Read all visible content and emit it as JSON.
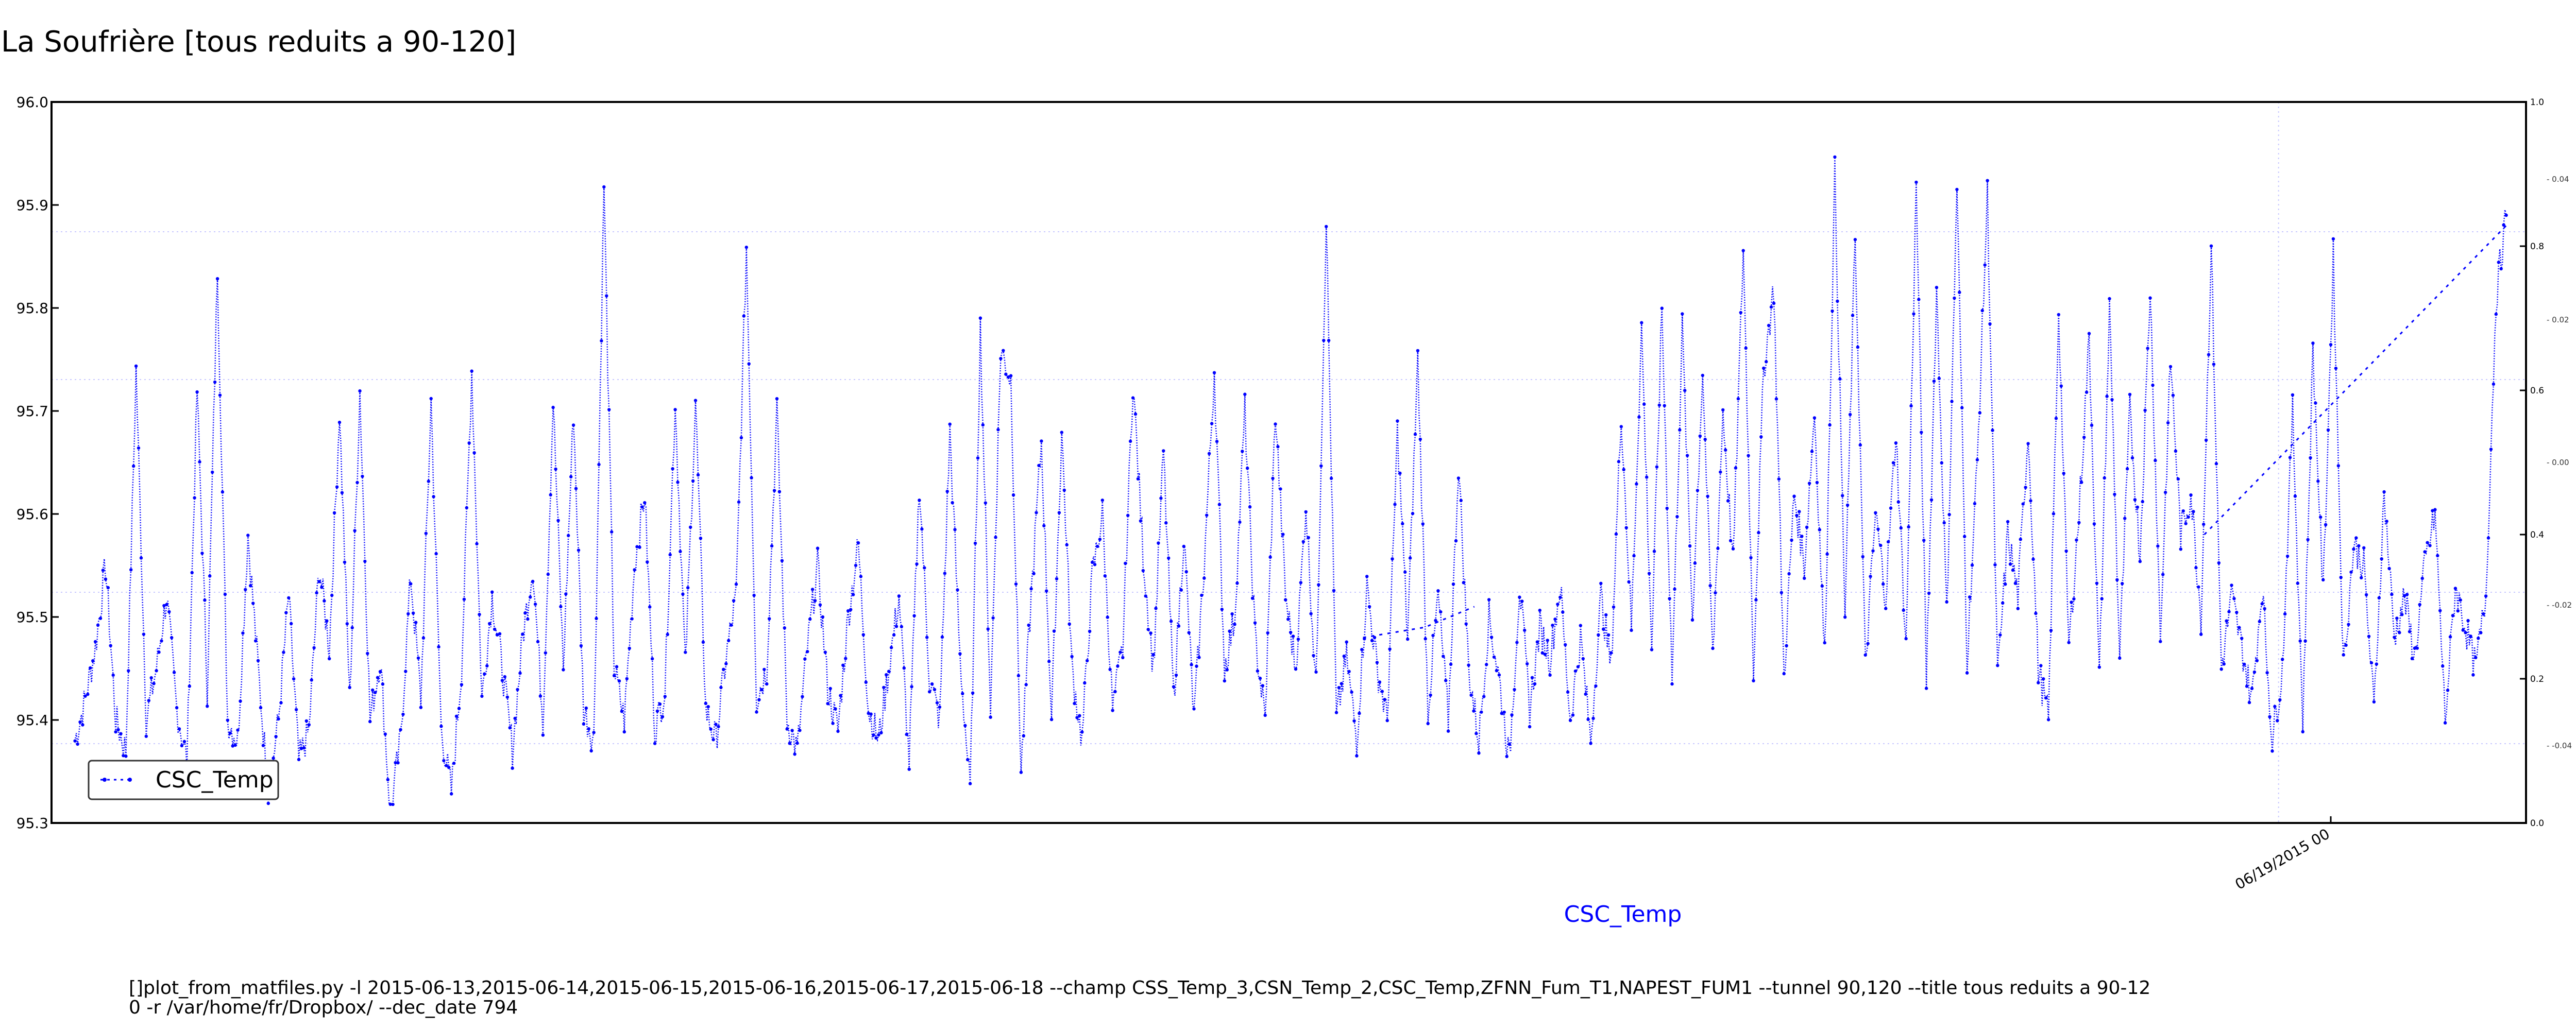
{
  "chart_data": {
    "type": "line",
    "title": "La Soufrière [tous reduits a 90-120]",
    "xlabel": "CSC_Temp",
    "ylabel": "",
    "ylim": [
      95.3,
      96.0
    ],
    "yticks": [
      "96.0",
      "95.9",
      "95.8",
      "95.7",
      "95.6",
      "95.5",
      "95.4",
      "95.3"
    ],
    "x_tick_labels": [
      "06/19/2015 00"
    ],
    "right_axis_1": {
      "ylim": [
        0.0,
        1.0
      ],
      "ticks": [
        "1.0",
        "0.8",
        "0.6",
        "0.4",
        "0.2",
        "0.0"
      ]
    },
    "right_axis_2": {
      "ticks": [
        "0.04",
        "0.02",
        "0.00",
        "-0.02",
        "-0.04"
      ]
    },
    "grid": true,
    "legend": {
      "position": "bottom-left",
      "entries": [
        "CSC_Temp"
      ]
    },
    "series": [
      {
        "name": "CSC_Temp",
        "color": "#0000ff",
        "style": "dotted-markers",
        "values": [
          95.38,
          95.42,
          95.47,
          95.55,
          95.4,
          95.37,
          95.74,
          95.4,
          95.45,
          95.52,
          95.41,
          95.36,
          95.72,
          95.43,
          95.84,
          95.4,
          95.38,
          95.58,
          95.45,
          95.33,
          95.4,
          95.52,
          95.36,
          95.39,
          95.55,
          95.47,
          95.7,
          95.42,
          95.72,
          95.4,
          95.46,
          95.31,
          95.38,
          95.54,
          95.42,
          95.71,
          95.39,
          95.33,
          95.45,
          95.74,
          95.42,
          95.52,
          95.45,
          95.37,
          95.48,
          95.55,
          95.4,
          95.71,
          95.45,
          95.7,
          95.41,
          95.38,
          95.92,
          95.45,
          95.4,
          95.55,
          95.62,
          95.39,
          95.43,
          95.71,
          95.45,
          95.71,
          95.41,
          95.38,
          95.46,
          95.52,
          95.86,
          95.42,
          95.45,
          95.7,
          95.4,
          95.37,
          95.47,
          95.55,
          95.43,
          95.39,
          95.5,
          95.57,
          95.41,
          95.38,
          95.45,
          95.52,
          95.36,
          95.63,
          95.44,
          95.4,
          95.68,
          95.46,
          95.33,
          95.78,
          95.41,
          95.76,
          95.73,
          95.35,
          95.52,
          95.67,
          95.4,
          95.68,
          95.45,
          95.38,
          95.54,
          95.6,
          95.41,
          95.47,
          95.73,
          95.56,
          95.45,
          95.66,
          95.42,
          95.58,
          95.4,
          95.55,
          95.74,
          95.45,
          95.5,
          95.7,
          95.48,
          95.4,
          95.7,
          95.52,
          95.45,
          95.61,
          95.43,
          95.89,
          95.4,
          95.46,
          95.38,
          95.53,
          95.45,
          95.4,
          95.68,
          95.48,
          95.75,
          95.41,
          95.52,
          95.4,
          95.65,
          95.45,
          95.38,
          95.5,
          95.44,
          95.36,
          95.53,
          95.41,
          95.49,
          95.46,
          95.53,
          95.4,
          95.48,
          95.38,
          95.52,
          95.45,
          95.7,
          95.49,
          95.78,
          95.47,
          95.8,
          95.44,
          95.78,
          95.5,
          95.74,
          95.46,
          95.7,
          95.55,
          95.86,
          95.45,
          95.74,
          95.82,
          95.44,
          95.62,
          95.55,
          95.7,
          95.46,
          95.93,
          95.5,
          95.87,
          95.45,
          95.6,
          95.52,
          95.68,
          95.47,
          95.92,
          95.44,
          95.82,
          95.5,
          95.92,
          95.46,
          95.65,
          95.91,
          95.44,
          95.58,
          95.52,
          95.68,
          95.45,
          95.4,
          95.8,
          95.47,
          95.6,
          95.77,
          95.44,
          95.8,
          95.46,
          95.7,
          95.56,
          95.82,
          95.48,
          95.75,
          95.58,
          95.62,
          95.5,
          95.86,
          95.45,
          95.52,
          95.47,
          95.42,
          95.53,
          95.38,
          95.45,
          95.7,
          95.4,
          95.76,
          95.52,
          95.85,
          95.45,
          95.57,
          95.55,
          95.41,
          95.62,
          95.48,
          95.52,
          95.46,
          95.55,
          95.6,
          95.4,
          95.53,
          95.49,
          95.45,
          95.52,
          95.81,
          95.89
        ]
      }
    ],
    "annotations": [
      "[]plot_from_matfiles.py -l 2015-06-13,2015-06-14,2015-06-15,2015-06-16,2015-06-17,2015-06-18 --champ CSS_Temp_3,CSN_Temp_2,CSC_Temp,ZFNN_Fum_T1,NAPEST_FUM1 --tunnel 90,120 --title tous reduits a 90-12",
      "0 -r /var/home/fr/Dropbox/ --dec_date 794"
    ]
  }
}
